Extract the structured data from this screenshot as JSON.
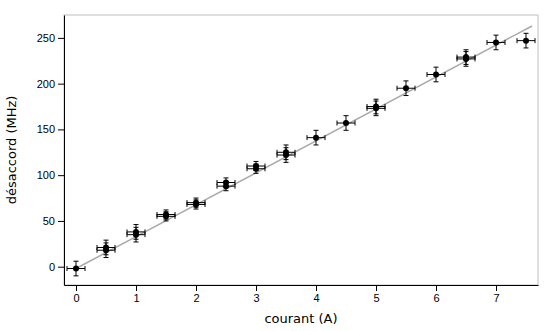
{
  "chart_data": {
    "type": "scatter",
    "xlabel": "courant (A)",
    "ylabel": "désaccord (MHz)",
    "xlim": [
      -0.2,
      7.7
    ],
    "ylim": [
      -20,
      275
    ],
    "xticks": [
      0,
      1,
      2,
      3,
      4,
      5,
      6,
      7
    ],
    "yticks": [
      0,
      50,
      100,
      150,
      200,
      250
    ],
    "series": [
      {
        "type": "line",
        "color": "#aaaaaa",
        "line_style": "solid",
        "x": [
          0.0,
          7.6
        ],
        "values": [
          -2,
          263
        ]
      },
      {
        "type": "scatter",
        "color": "#000000",
        "marker": "circle",
        "x": [
          0.0,
          0.5,
          0.5,
          1.0,
          1.0,
          1.5,
          1.5,
          2.0,
          2.0,
          2.5,
          2.5,
          3.0,
          3.0,
          3.5,
          3.5,
          4.0,
          4.5,
          5.0,
          5.0,
          5.5,
          6.0,
          6.5,
          6.5,
          7.0,
          7.5
        ],
        "values": [
          -2,
          18,
          21,
          35,
          38,
          55,
          57,
          68,
          70,
          88,
          92,
          107,
          110,
          122,
          125,
          141,
          157,
          173,
          175,
          195,
          210,
          227,
          229,
          245,
          247
        ],
        "x_err": [
          0.15,
          0.15,
          0.15,
          0.15,
          0.15,
          0.15,
          0.15,
          0.15,
          0.15,
          0.15,
          0.15,
          0.15,
          0.15,
          0.15,
          0.15,
          0.15,
          0.15,
          0.15,
          0.15,
          0.15,
          0.15,
          0.15,
          0.15,
          0.15,
          0.15
        ],
        "y_err": [
          8,
          8,
          8,
          8,
          8,
          5,
          5,
          5,
          5,
          5,
          5,
          5,
          5,
          8,
          8,
          8,
          8,
          8,
          8,
          8,
          8,
          8,
          8,
          8,
          8
        ]
      }
    ]
  }
}
